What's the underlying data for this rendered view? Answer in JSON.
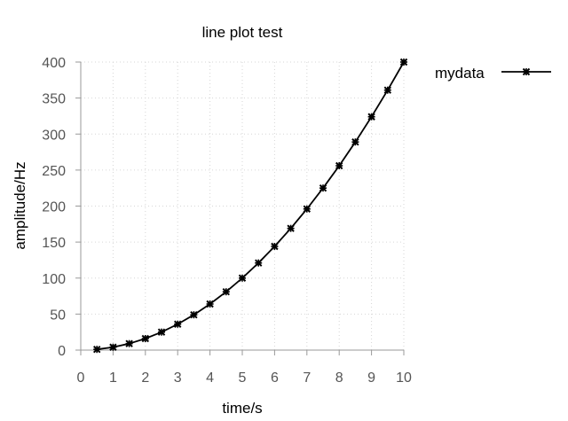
{
  "chart_data": {
    "type": "line",
    "title": "line plot test",
    "xlabel": "time/s",
    "ylabel": "amplitude/Hz",
    "xlim": [
      0,
      10
    ],
    "ylim": [
      0,
      400
    ],
    "xticks": [
      0,
      1,
      2,
      3,
      4,
      5,
      6,
      7,
      8,
      9,
      10
    ],
    "yticks": [
      0,
      50,
      100,
      150,
      200,
      250,
      300,
      350,
      400
    ],
    "grid": true,
    "legend_position": "top-right outside",
    "series": [
      {
        "name": "mydata",
        "color": "#000000",
        "marker": "star",
        "x": [
          0.5,
          1,
          1.5,
          2,
          2.5,
          3,
          3.5,
          4,
          4.5,
          5,
          5.5,
          6,
          6.5,
          7,
          7.5,
          8,
          8.5,
          9,
          9.5,
          10
        ],
        "y": [
          1,
          4,
          9,
          16,
          25,
          36,
          49,
          64,
          81,
          100,
          121,
          144,
          169,
          196,
          225,
          256,
          289,
          324,
          361,
          400
        ]
      }
    ]
  }
}
